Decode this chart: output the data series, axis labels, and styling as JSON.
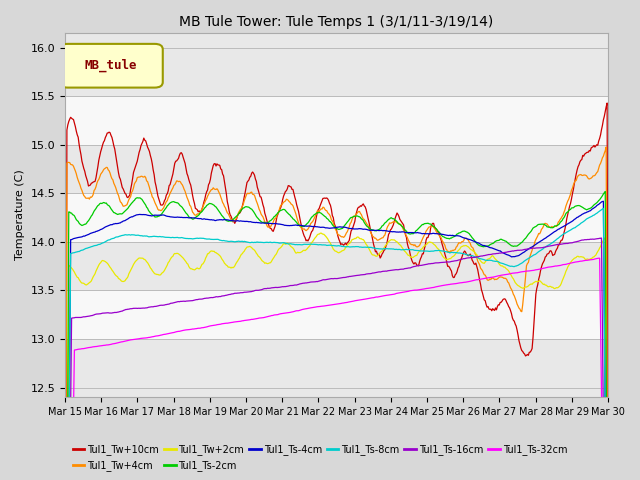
{
  "title": "MB Tule Tower: Tule Temps 1 (3/1/11-3/19/14)",
  "ylabel": "Temperature (C)",
  "ylim": [
    12.4,
    16.15
  ],
  "yticks": [
    12.5,
    13.0,
    13.5,
    14.0,
    14.5,
    15.0,
    15.5,
    16.0
  ],
  "n_points": 580,
  "legend_box_label": "MB_tule",
  "series": [
    {
      "label": "Tul1_Tw+10cm",
      "color": "#cc0000"
    },
    {
      "label": "Tul1_Tw+4cm",
      "color": "#ff8c00"
    },
    {
      "label": "Tul1_Tw+2cm",
      "color": "#e8e800"
    },
    {
      "label": "Tul1_Ts-2cm",
      "color": "#00cc00"
    },
    {
      "label": "Tul1_Ts-4cm",
      "color": "#0000cc"
    },
    {
      "label": "Tul1_Ts-8cm",
      "color": "#00cccc"
    },
    {
      "label": "Tul1_Ts-16cm",
      "color": "#9900cc"
    },
    {
      "label": "Tul1_Ts-32cm",
      "color": "#ff00ff"
    }
  ],
  "xtick_labels": [
    "Mar 15",
    "Mar 16",
    "Mar 17",
    "Mar 18",
    "Mar 19",
    "Mar 20",
    "Mar 21",
    "Mar 22",
    "Mar 23",
    "Mar 24",
    "Mar 25",
    "Mar 26",
    "Mar 27",
    "Mar 28",
    "Mar 29",
    "Mar 30"
  ],
  "bg_color": "#d8d8d8",
  "plot_bg_color": "#f0f0f0",
  "band_colors": [
    "#e8e8e8",
    "#f8f8f8"
  ]
}
